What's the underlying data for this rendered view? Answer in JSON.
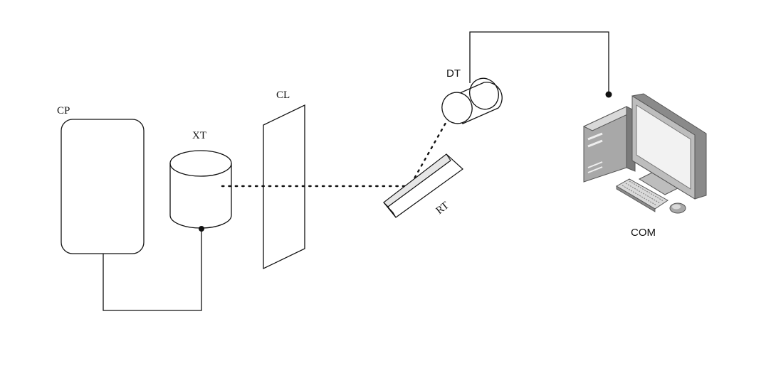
{
  "labels": {
    "cp": "CP",
    "xt": "XT",
    "cl": "CL",
    "rt": "RT",
    "dt": "DT",
    "com": "COM"
  },
  "colors": {
    "line": "#111111",
    "computer_dark": "#7a7a7a",
    "computer_mid": "#a8a8a8",
    "computer_light": "#d9d9d9",
    "screen": "#f2f2f2",
    "crystal_face": "#e6e6e6"
  }
}
